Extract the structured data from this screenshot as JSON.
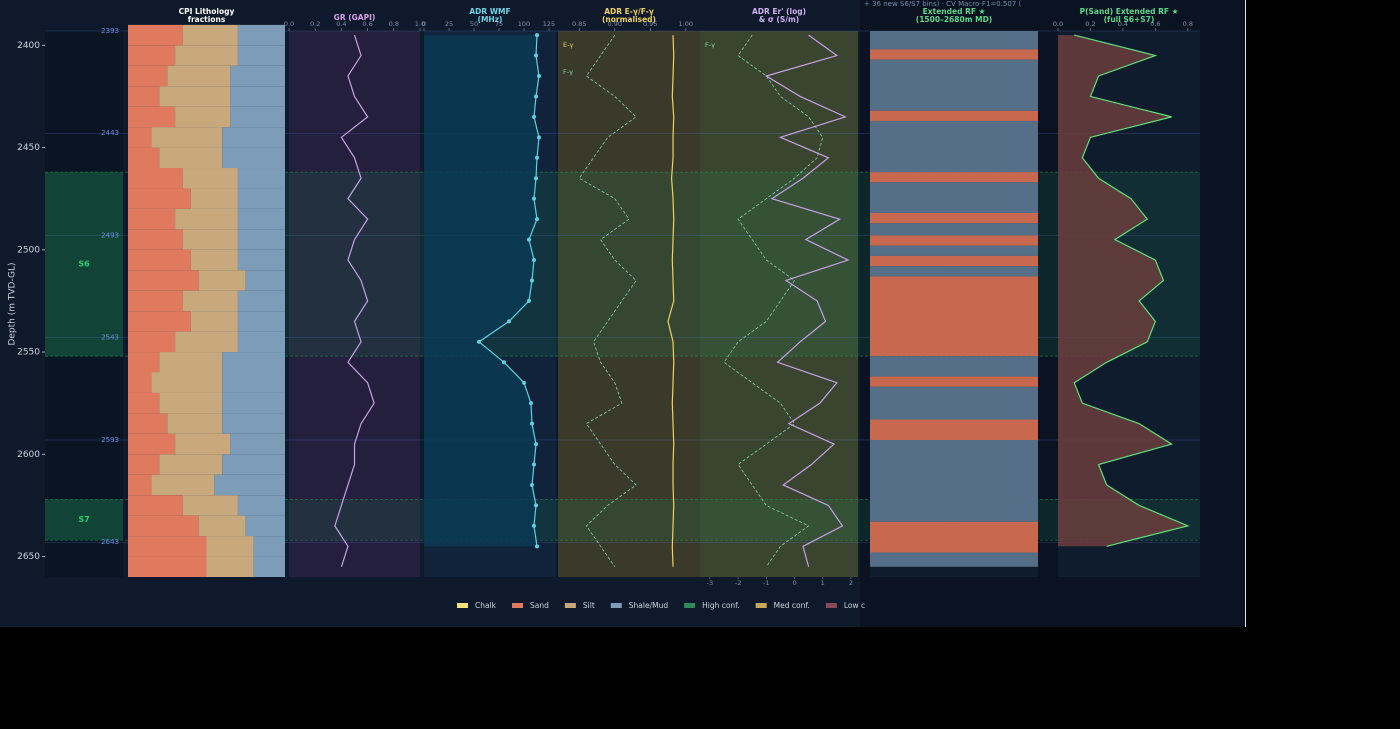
{
  "header_text": "+ 36 new S6/S7 bins) · CV Macro-F1=0.507 (",
  "legend": [
    {
      "name": "Chalk",
      "color": "#f3e37a"
    },
    {
      "name": "Sand",
      "color": "#e07a5f"
    },
    {
      "name": "Silt",
      "color": "#c8a97e"
    },
    {
      "name": "Shale/Mud",
      "color": "#7d9cb8"
    },
    {
      "name": "High conf.",
      "color": "#2e8b57"
    },
    {
      "name": "Med conf.",
      "color": "#c9a75a"
    },
    {
      "name": "Low c",
      "color": "#8a4a55"
    }
  ],
  "chart_data": [
    {
      "type": "depth",
      "ylabel": "Depth (m TVD-GL)",
      "ylim": [
        2393,
        2660
      ],
      "yticks": [
        2400,
        2450,
        2500,
        2550,
        2600,
        2650
      ],
      "markers": [
        2393,
        2443,
        2493,
        2543,
        2593,
        2643
      ],
      "zones": [
        {
          "label": "S6",
          "top": 2462,
          "base": 2552,
          "color": "#1f9a5a"
        },
        {
          "label": "S7",
          "top": 2622,
          "base": 2642,
          "color": "#1f9a5a"
        }
      ]
    },
    {
      "type": "stacked",
      "title": [
        "CPI Lithology",
        "fractions"
      ],
      "title_color": "#ffffff",
      "xlim": [
        0,
        1
      ],
      "y": [
        2395,
        2405,
        2415,
        2425,
        2435,
        2445,
        2455,
        2465,
        2475,
        2485,
        2495,
        2505,
        2515,
        2525,
        2535,
        2545,
        2555,
        2565,
        2575,
        2585,
        2595,
        2605,
        2615,
        2625,
        2635,
        2645,
        2655
      ],
      "series": [
        {
          "name": "Sand",
          "color": "#e07a5f",
          "values": [
            0.35,
            0.3,
            0.25,
            0.2,
            0.3,
            0.15,
            0.2,
            0.35,
            0.4,
            0.3,
            0.35,
            0.4,
            0.45,
            0.35,
            0.4,
            0.3,
            0.2,
            0.15,
            0.2,
            0.25,
            0.3,
            0.2,
            0.15,
            0.35,
            0.45,
            0.5,
            0.5
          ]
        },
        {
          "name": "Silt",
          "color": "#c8a97e",
          "values": [
            0.35,
            0.4,
            0.4,
            0.45,
            0.35,
            0.45,
            0.4,
            0.35,
            0.3,
            0.4,
            0.35,
            0.3,
            0.3,
            0.35,
            0.3,
            0.4,
            0.4,
            0.45,
            0.4,
            0.35,
            0.35,
            0.4,
            0.4,
            0.35,
            0.3,
            0.3,
            0.3
          ]
        },
        {
          "name": "Shale/Mud",
          "color": "#7d9cb8",
          "values": [
            0.3,
            0.3,
            0.35,
            0.35,
            0.35,
            0.4,
            0.4,
            0.3,
            0.3,
            0.3,
            0.3,
            0.3,
            0.25,
            0.3,
            0.3,
            0.3,
            0.4,
            0.4,
            0.4,
            0.4,
            0.35,
            0.4,
            0.45,
            0.3,
            0.25,
            0.2,
            0.2
          ]
        }
      ]
    },
    {
      "type": "line",
      "title": [
        "GR (GAPI)"
      ],
      "title_color": "#d8a0e8",
      "xlim": [
        0,
        1
      ],
      "xticks": [
        {
          "value": 0,
          "label": "0.0"
        },
        0.2,
        0.4,
        0.6,
        0.8,
        {
          "value": 1,
          "label": "1.0"
        }
      ],
      "y": [
        2395,
        2405,
        2415,
        2425,
        2435,
        2445,
        2455,
        2465,
        2475,
        2485,
        2495,
        2505,
        2515,
        2525,
        2535,
        2545,
        2555,
        2565,
        2575,
        2585,
        2595,
        2605,
        2615,
        2625,
        2635,
        2645,
        2655
      ],
      "series": [
        {
          "color": "#c9a0e6",
          "values": [
            0.5,
            0.55,
            0.45,
            0.5,
            0.6,
            0.4,
            0.5,
            0.55,
            0.45,
            0.6,
            0.5,
            0.45,
            0.55,
            0.6,
            0.5,
            0.55,
            0.45,
            0.6,
            0.65,
            0.55,
            0.5,
            0.5,
            0.45,
            0.4,
            0.35,
            0.45,
            0.4
          ]
        }
      ]
    },
    {
      "type": "line",
      "title": [
        "ADR WMF",
        "(MHz)"
      ],
      "title_color": "#6fd3e8",
      "xlim": [
        0,
        132
      ],
      "xticks": [
        0,
        25,
        50,
        75,
        100,
        125
      ],
      "y": [
        2395,
        2405,
        2415,
        2425,
        2435,
        2445,
        2455,
        2465,
        2475,
        2485,
        2495,
        2505,
        2515,
        2525,
        2535,
        2545,
        2555,
        2565,
        2575,
        2585,
        2595,
        2605,
        2615,
        2625,
        2635,
        2645
      ],
      "series": [
        {
          "color": "#5fd0e0",
          "fill": "#0b3a55",
          "markers": true,
          "values": [
            113,
            112,
            115,
            112,
            110,
            115,
            113,
            112,
            110,
            113,
            105,
            110,
            108,
            105,
            85,
            55,
            80,
            100,
            107,
            108,
            112,
            110,
            108,
            112,
            110,
            113
          ]
        }
      ]
    },
    {
      "type": "line",
      "title": [
        "ADR E-γ/F-γ",
        "(normalised)"
      ],
      "title_color": "#f0d060",
      "xlim": [
        0.82,
        1.02
      ],
      "xticks": [
        0.85,
        {
          "value": 0.9,
          "label": "0.90"
        },
        0.95,
        {
          "value": 1,
          "label": "1.00"
        }
      ],
      "y": [
        2395,
        2405,
        2415,
        2425,
        2435,
        2445,
        2455,
        2465,
        2475,
        2485,
        2495,
        2505,
        2515,
        2525,
        2535,
        2545,
        2555,
        2565,
        2575,
        2585,
        2595,
        2605,
        2615,
        2625,
        2635,
        2645,
        2655
      ],
      "series": [
        {
          "name": "E-γ",
          "color": "#f0d060",
          "values": [
            0.982,
            0.983,
            0.982,
            0.981,
            0.983,
            0.982,
            0.982,
            0.98,
            0.982,
            0.983,
            0.982,
            0.981,
            0.982,
            0.983,
            0.975,
            0.982,
            0.983,
            0.982,
            0.981,
            0.982,
            0.983,
            0.982,
            0.982,
            0.983,
            0.982,
            0.981,
            0.982
          ]
        },
        {
          "name": "F-γ",
          "color": "#7fd8b0",
          "dash": true,
          "values": [
            0.9,
            0.88,
            0.86,
            0.9,
            0.93,
            0.89,
            0.87,
            0.85,
            0.9,
            0.92,
            0.88,
            0.9,
            0.93,
            0.91,
            0.89,
            0.87,
            0.88,
            0.9,
            0.91,
            0.86,
            0.88,
            0.9,
            0.93,
            0.89,
            0.86,
            0.88,
            0.9
          ]
        }
      ]
    },
    {
      "type": "line",
      "title": [
        "ADR Er' (log)",
        "& σ (S/m)"
      ],
      "title_color": "#d0b0f0",
      "xlim": [
        -3.35,
        2.25
      ],
      "tick_side": "bottom",
      "xticks": [
        -3,
        -2,
        -1,
        0,
        1,
        2
      ],
      "y": [
        2395,
        2405,
        2415,
        2425,
        2435,
        2445,
        2455,
        2465,
        2475,
        2485,
        2495,
        2505,
        2515,
        2525,
        2535,
        2545,
        2555,
        2565,
        2575,
        2585,
        2595,
        2605,
        2615,
        2625,
        2635,
        2645,
        2655
      ],
      "series": [
        {
          "name": "F-γ",
          "color": "#7fd8b0",
          "dash": true,
          "values": [
            -1.5,
            -2,
            -1,
            -0.5,
            0.5,
            1,
            0.8,
            0,
            -1,
            -2,
            -1.5,
            -1,
            0,
            -0.5,
            -1,
            -2,
            -2.5,
            -1.5,
            -0.5,
            0,
            -1,
            -2,
            -1.5,
            -1,
            0.5,
            -0.5,
            -1
          ]
        },
        {
          "color": "#c9a0e6",
          "values": [
            0.5,
            1.5,
            -1,
            0.2,
            1.8,
            -0.5,
            1.2,
            0.3,
            -0.8,
            1.6,
            0.4,
            1.9,
            -0.3,
            0.8,
            1.1,
            0.2,
            -0.6,
            1.5,
            0.9,
            -0.2,
            1.4,
            0.6,
            -0.4,
            1.2,
            1.7,
            0.3,
            0.5
          ]
        }
      ]
    },
    {
      "type": "blocks",
      "title": [
        "Extended RF ★",
        "(1500–2680m MD)"
      ],
      "title_color": "#5cd68a",
      "tops": [
        2393,
        2402,
        2407,
        2432,
        2437,
        2462,
        2467,
        2482,
        2487,
        2493,
        2498,
        2503,
        2508,
        2513,
        2552,
        2562,
        2567,
        2583,
        2593,
        2633,
        2648
      ],
      "bases": [
        2402,
        2407,
        2432,
        2437,
        2462,
        2467,
        2482,
        2487,
        2493,
        2498,
        2503,
        2508,
        2513,
        2552,
        2562,
        2567,
        2583,
        2593,
        2633,
        2648,
        2655
      ],
      "colors": [
        "#566f88",
        "#c8694f",
        "#566f88",
        "#c8694f",
        "#566f88",
        "#c8694f",
        "#566f88",
        "#c8694f",
        "#566f88",
        "#c8694f",
        "#566f88",
        "#c8694f",
        "#566f88",
        "#c8694f",
        "#566f88",
        "#c8694f",
        "#566f88",
        "#c8694f",
        "#566f88",
        "#c8694f",
        "#566f88"
      ]
    },
    {
      "type": "line",
      "title": [
        "P(Sand) Extended RF ★",
        "(full S6+S7)"
      ],
      "title_color": "#5cd68a",
      "xlim": [
        0,
        0.875
      ],
      "xticks": [
        {
          "value": 0,
          "label": "0.0"
        },
        0.2,
        0.4,
        0.6,
        0.8
      ],
      "y": [
        2395,
        2405,
        2415,
        2425,
        2435,
        2445,
        2455,
        2465,
        2475,
        2485,
        2495,
        2505,
        2515,
        2525,
        2535,
        2545,
        2555,
        2565,
        2575,
        2585,
        2595,
        2605,
        2615,
        2625,
        2635,
        2645
      ],
      "series": [
        {
          "color": "#5ee07a",
          "fill": "#6b3d3d",
          "values": [
            0.1,
            0.6,
            0.25,
            0.2,
            0.7,
            0.2,
            0.15,
            0.25,
            0.45,
            0.55,
            0.35,
            0.6,
            0.65,
            0.5,
            0.6,
            0.55,
            0.3,
            0.1,
            0.15,
            0.5,
            0.7,
            0.25,
            0.3,
            0.5,
            0.8,
            0.3
          ]
        }
      ]
    }
  ]
}
